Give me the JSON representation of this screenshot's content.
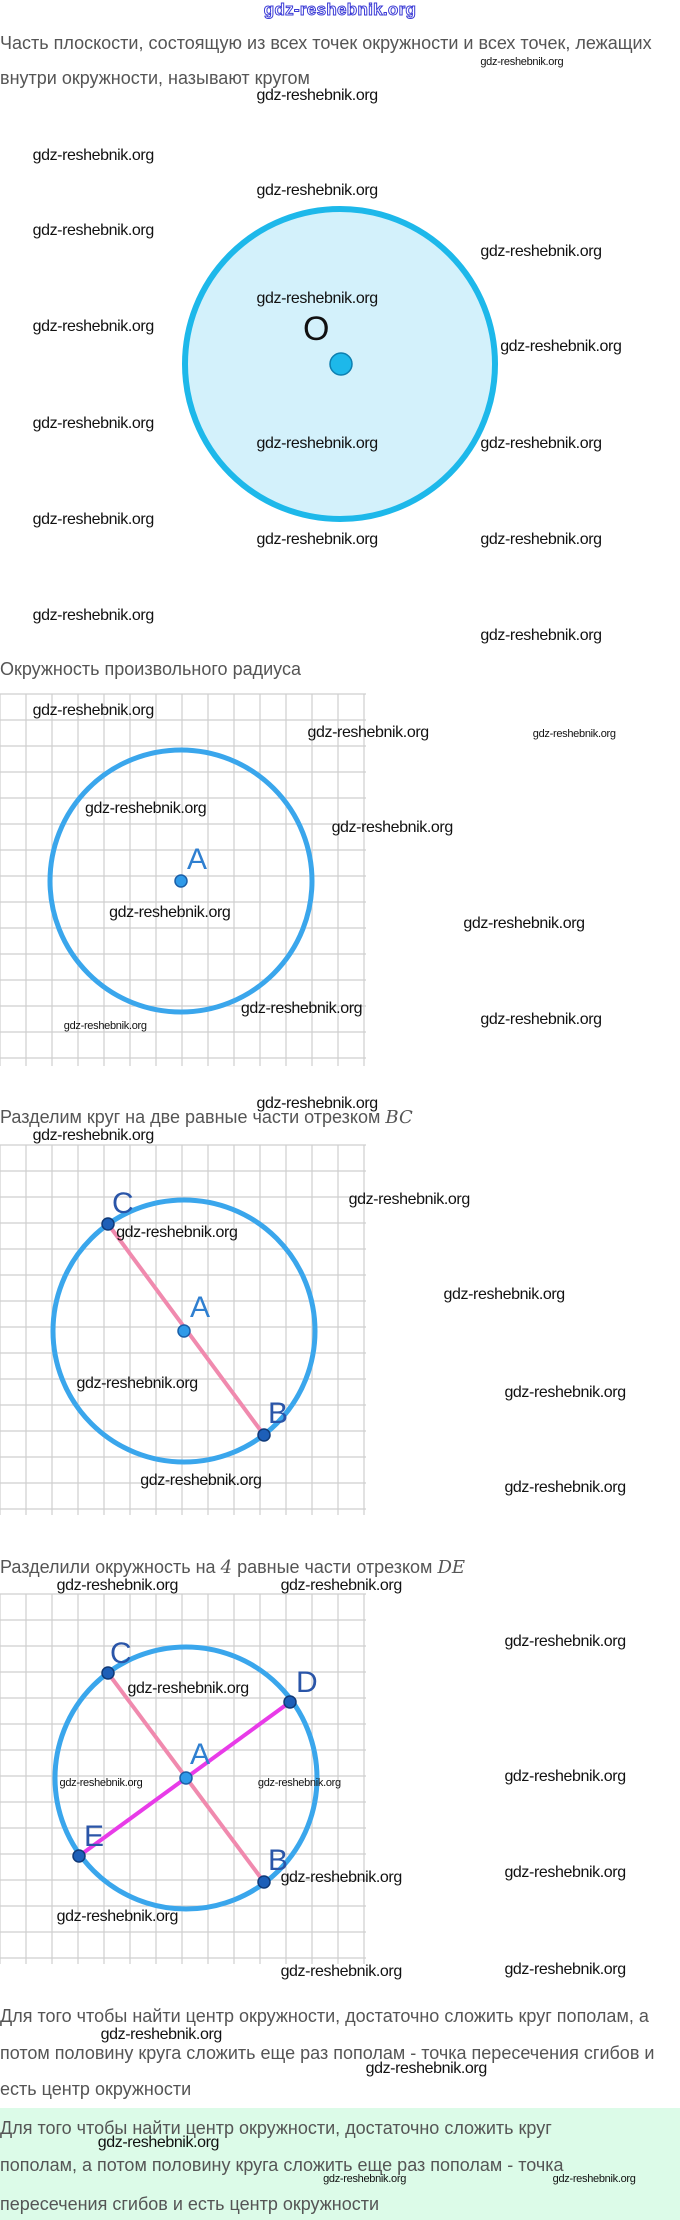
{
  "watermark_text": "gdz-reshebnik.org",
  "header": {
    "site": "gdz-reshebnik.org"
  },
  "section1": {
    "line1": "Часть плоскости, состоящую из всех точек окружности и всех точек, лежащих",
    "line2": "внутри окружности, называют кругом",
    "figure": {
      "center_label": "O",
      "fill": "#d3f1fb",
      "stroke": "#1db8ea"
    }
  },
  "section2": {
    "caption": "Окружность произвольного радиуса",
    "figure": {
      "center_label": "A",
      "stroke": "#3aa6ec"
    }
  },
  "section3": {
    "caption": "Разделим круг на две равные части отрезком",
    "caption_math": "BC",
    "figure": {
      "labels": {
        "A": "A",
        "B": "B",
        "C": "C"
      },
      "segment_color": "#f08aae"
    }
  },
  "section4": {
    "caption_a": "Разделили окружность на",
    "caption_num": "4",
    "caption_b": "равные части отрезком",
    "caption_math": "DE",
    "figure": {
      "labels": {
        "A": "A",
        "B": "B",
        "C": "C",
        "D": "D",
        "E": "E"
      },
      "segment_bc_color": "#f08aae",
      "segment_de_color": "#e83be8"
    }
  },
  "section5": {
    "line1": "Для того чтобы найти центр окружности, достаточно сложить круг пополам, а",
    "line2": "потом половину круга сложить еще раз пополам - точка пересечения сгибов и",
    "line3": "есть центр окружности"
  },
  "answer_box": {
    "bg": "#dcfbe8",
    "line1": "Для того чтобы найти центр окружности, достаточно сложить круг",
    "line2": "пополам, а потом половину круга сложить еще раз пополам - точка",
    "line3": "пересечения сгибов и есть центр окружности"
  }
}
